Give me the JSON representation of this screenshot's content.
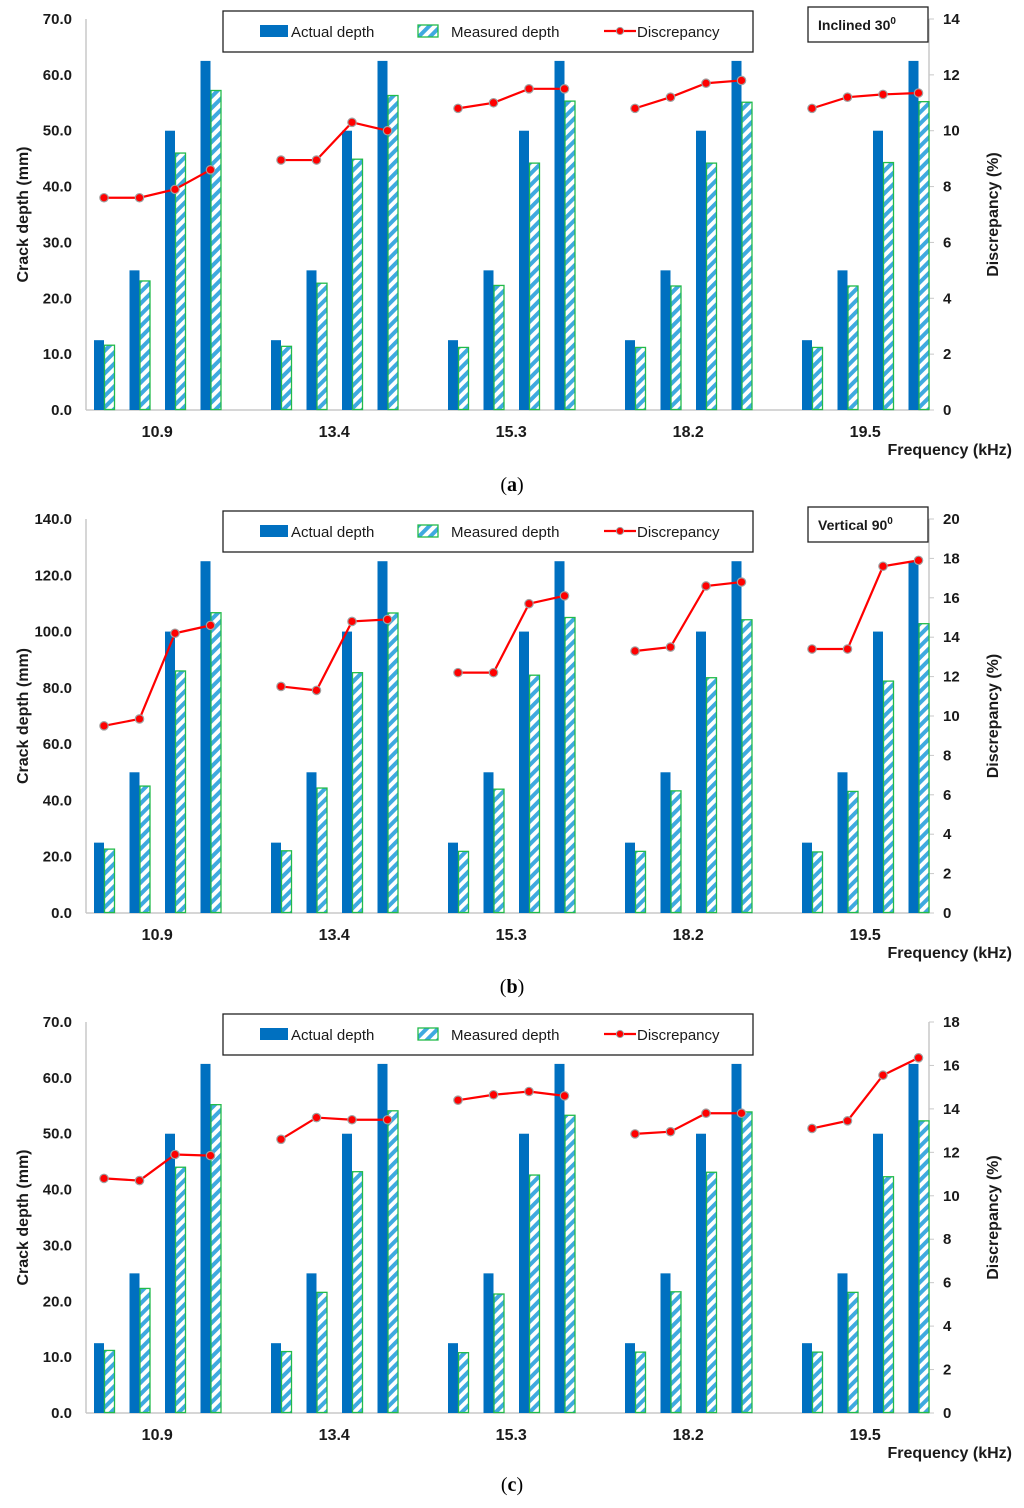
{
  "colors": {
    "actual": "#0070c0",
    "measured_stripe": "#3fa9e0",
    "measured_border": "#22bb4a",
    "discrepancy": "#ff0000",
    "marker_edge": "#a0a0a0",
    "axis": "#c8c8c8",
    "text": "#1a1a1a"
  },
  "chart_data": [
    {
      "id": "a",
      "type": "bar",
      "caption": "a",
      "annotation": "Inclined 30",
      "annotation_sup": "0",
      "categories": [
        "10.9",
        "13.4",
        "15.3",
        "18.2",
        "19.5"
      ],
      "xlabel": "Frequency (kHz)",
      "ylabel": "Crack depth (mm)",
      "y2label": "Discrepancy (%)",
      "ylim": [
        0,
        70
      ],
      "yticks": [
        "0.0",
        "10.0",
        "20.0",
        "30.0",
        "40.0",
        "50.0",
        "60.0",
        "70.0"
      ],
      "y2lim": [
        0,
        14
      ],
      "y2ticks": [
        "0",
        "2",
        "4",
        "6",
        "8",
        "10",
        "12",
        "14"
      ],
      "legend": [
        "Actual depth",
        "Measured depth",
        "Discrepancy"
      ],
      "legend_position": "top-center",
      "bars_per_group": 4,
      "series": [
        {
          "name": "Actual depth",
          "values": [
            [
              12.5,
              25,
              50,
              62.5
            ],
            [
              12.5,
              25,
              50,
              62.5
            ],
            [
              12.5,
              25,
              50,
              62.5
            ],
            [
              12.5,
              25,
              50,
              62.5
            ],
            [
              12.5,
              25,
              50,
              62.5
            ]
          ]
        },
        {
          "name": "Measured depth",
          "values": [
            [
              11.6,
              23.1,
              46.0,
              57.2
            ],
            [
              11.4,
              22.7,
              44.9,
              56.3
            ],
            [
              11.2,
              22.3,
              44.2,
              55.3
            ],
            [
              11.2,
              22.2,
              44.2,
              55.1
            ],
            [
              11.2,
              22.2,
              44.3,
              55.2
            ]
          ]
        },
        {
          "name": "Discrepancy",
          "axis": "right",
          "values": [
            [
              7.6,
              7.6,
              7.9,
              8.6
            ],
            [
              8.95,
              8.95,
              10.3,
              10.0
            ],
            [
              10.8,
              11.0,
              11.5,
              11.5
            ],
            [
              10.8,
              11.2,
              11.7,
              11.8
            ],
            [
              10.8,
              11.2,
              11.3,
              11.35
            ]
          ]
        }
      ]
    },
    {
      "id": "b",
      "type": "bar",
      "caption": "b",
      "annotation": "Vertical 90",
      "annotation_sup": "0",
      "categories": [
        "10.9",
        "13.4",
        "15.3",
        "18.2",
        "19.5"
      ],
      "xlabel": "Frequency (kHz)",
      "ylabel": "Crack depth (mm)",
      "y2label": "Discrepancy (%)",
      "ylim": [
        0,
        140
      ],
      "yticks": [
        "0.0",
        "20.0",
        "40.0",
        "60.0",
        "80.0",
        "100.0",
        "120.0",
        "140.0"
      ],
      "y2lim": [
        0,
        20
      ],
      "y2ticks": [
        "0",
        "2",
        "4",
        "6",
        "8",
        "10",
        "12",
        "14",
        "16",
        "18",
        "20"
      ],
      "legend": [
        "Actual depth",
        "Measured depth",
        "Discrepancy"
      ],
      "legend_position": "top-center",
      "bars_per_group": 4,
      "series": [
        {
          "name": "Actual depth",
          "values": [
            [
              25,
              50,
              100,
              125
            ],
            [
              25,
              50,
              100,
              125
            ],
            [
              25,
              50,
              100,
              125
            ],
            [
              25,
              50,
              100,
              125
            ],
            [
              25,
              50,
              100,
              125
            ]
          ]
        },
        {
          "name": "Measured depth",
          "values": [
            [
              22.7,
              45.1,
              86.0,
              106.7
            ],
            [
              22.1,
              44.4,
              85.4,
              106.6
            ],
            [
              21.9,
              44.0,
              84.5,
              105.0
            ],
            [
              21.9,
              43.4,
              83.6,
              104.2
            ],
            [
              21.7,
              43.2,
              82.4,
              102.8
            ]
          ]
        },
        {
          "name": "Discrepancy",
          "axis": "right",
          "values": [
            [
              9.5,
              9.85,
              14.2,
              14.6
            ],
            [
              11.5,
              11.3,
              14.8,
              14.9
            ],
            [
              12.2,
              12.2,
              15.7,
              16.1
            ],
            [
              13.3,
              13.5,
              16.6,
              16.8
            ],
            [
              13.4,
              13.4,
              17.6,
              17.9
            ]
          ]
        }
      ]
    },
    {
      "id": "c",
      "type": "bar",
      "caption": "c",
      "annotation": "",
      "annotation_sup": "",
      "categories": [
        "10.9",
        "13.4",
        "15.3",
        "18.2",
        "19.5"
      ],
      "xlabel": "Frequency (kHz)",
      "ylabel": "Crack depth (mm)",
      "y2label": "Discrepancy (%)",
      "ylim": [
        0,
        70
      ],
      "yticks": [
        "0.0",
        "10.0",
        "20.0",
        "30.0",
        "40.0",
        "50.0",
        "60.0",
        "70.0"
      ],
      "y2lim": [
        0,
        18
      ],
      "y2ticks": [
        "0",
        "2",
        "4",
        "6",
        "8",
        "10",
        "12",
        "14",
        "16",
        "18"
      ],
      "legend": [
        "Actual depth",
        "Measured depth",
        "Discrepancy"
      ],
      "legend_position": "top-center",
      "bars_per_group": 4,
      "series": [
        {
          "name": "Actual depth",
          "values": [
            [
              12.5,
              25,
              50,
              62.5
            ],
            [
              12.5,
              25,
              50,
              62.5
            ],
            [
              12.5,
              25,
              50,
              62.5
            ],
            [
              12.5,
              25,
              50,
              62.5
            ],
            [
              12.5,
              25,
              50,
              62.5
            ]
          ]
        },
        {
          "name": "Measured depth",
          "values": [
            [
              11.2,
              22.3,
              44.0,
              55.2
            ],
            [
              11.0,
              21.6,
              43.2,
              54.1
            ],
            [
              10.8,
              21.3,
              42.6,
              53.3
            ],
            [
              10.9,
              21.7,
              43.1,
              53.9
            ],
            [
              10.9,
              21.6,
              42.3,
              52.3
            ]
          ]
        },
        {
          "name": "Discrepancy",
          "axis": "right",
          "values": [
            [
              10.8,
              10.7,
              11.9,
              11.85
            ],
            [
              12.6,
              13.6,
              13.5,
              13.5
            ],
            [
              14.4,
              14.65,
              14.8,
              14.6
            ],
            [
              12.85,
              12.95,
              13.8,
              13.8
            ],
            [
              13.1,
              13.45,
              15.55,
              16.35
            ]
          ]
        }
      ]
    }
  ]
}
